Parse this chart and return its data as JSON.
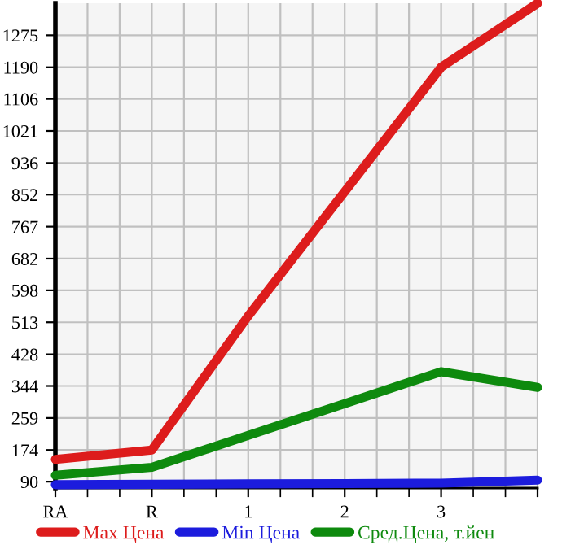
{
  "chart_data": {
    "type": "line",
    "categories": [
      "RA",
      "R",
      "1",
      "2",
      "3",
      null
    ],
    "series": [
      {
        "name": "Max Цена",
        "color": "#dd1c1c",
        "values": [
          149,
          174,
          530,
          860,
          1190,
          1360
        ]
      },
      {
        "name": "Min Цена",
        "color": "#1c1cdd",
        "values": [
          82,
          83,
          84,
          85,
          86,
          94
        ]
      },
      {
        "name": "Сред.Цена, т.йен",
        "color": "#0e8a0e",
        "values": [
          107,
          128,
          213,
          297,
          382,
          340
        ]
      }
    ],
    "ylim": [
      73,
      1360
    ],
    "yticks": [
      90,
      174,
      259,
      344,
      428,
      513,
      598,
      682,
      767,
      852,
      936,
      1021,
      1106,
      1190,
      1275
    ],
    "grid": true,
    "legend": "bottom",
    "marker": "none",
    "line_style": "solid"
  }
}
